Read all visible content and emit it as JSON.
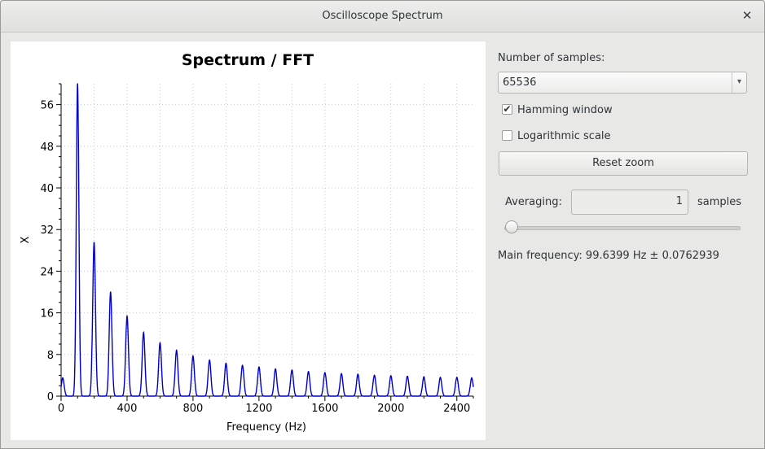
{
  "window": {
    "title": "Oscilloscope Spectrum",
    "close_icon": "close-icon"
  },
  "controls": {
    "samples_label": "Number of samples:",
    "samples_value": "65536",
    "hamming_label": "Hamming window",
    "hamming_checked": true,
    "log_label": "Logarithmic scale",
    "log_checked": false,
    "reset_label": "Reset zoom",
    "averaging_label": "Averaging:",
    "averaging_value": "1",
    "averaging_unit": "samples",
    "averaging_slider_fraction": 0,
    "main_frequency": "Main frequency: 99.6399 Hz ± 0.0762939"
  },
  "chart_data": {
    "type": "line",
    "title": "Spectrum / FFT",
    "xlabel": "Frequency (Hz)",
    "ylabel": "X",
    "xlim": [
      0,
      2500
    ],
    "ylim": [
      0,
      60
    ],
    "x_ticks": [
      0,
      400,
      800,
      1200,
      1600,
      2000,
      2400
    ],
    "y_ticks": [
      0,
      8,
      16,
      24,
      32,
      40,
      48,
      56
    ],
    "grid": true,
    "line_color": "#0000cc",
    "peaks": {
      "x": [
        10,
        100,
        200,
        300,
        400,
        500,
        600,
        700,
        800,
        900,
        1000,
        1100,
        1200,
        1300,
        1400,
        1500,
        1600,
        1700,
        1800,
        1900,
        2000,
        2100,
        2200,
        2300,
        2400,
        2490
      ],
      "y": [
        3.5,
        60,
        29.5,
        20,
        15.3,
        12.2,
        10.2,
        8.8,
        7.7,
        6.9,
        6.3,
        5.9,
        5.6,
        5.2,
        5.0,
        4.7,
        4.5,
        4.3,
        4.2,
        4.0,
        3.9,
        3.8,
        3.7,
        3.6,
        3.6,
        3.5
      ]
    }
  }
}
